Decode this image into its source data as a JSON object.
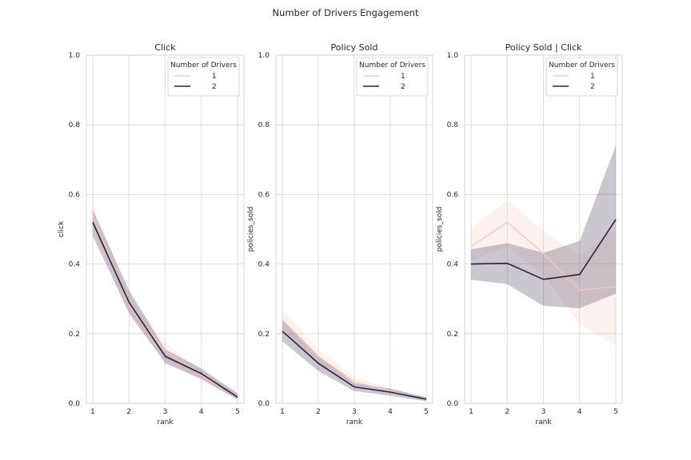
{
  "figure": {
    "title": "Number of Drivers Engagement"
  },
  "colors": {
    "series_1": "#f0c8c0",
    "series_2": "#2b2140",
    "grid": "#d6d6d6",
    "frame": "#cccccc"
  },
  "chart_data": [
    {
      "type": "line",
      "title": "Click",
      "xlabel": "rank",
      "ylabel": "click",
      "x": [
        1,
        2,
        3,
        4,
        5
      ],
      "xticks": [
        "1",
        "2",
        "3",
        "4",
        "5"
      ],
      "yticks": [
        "0.0",
        "0.2",
        "0.4",
        "0.6",
        "0.8",
        "1.0"
      ],
      "ylim": [
        0,
        1
      ],
      "grid": true,
      "legend": {
        "title": "Number of Drivers",
        "position": "top-right"
      },
      "series": [
        {
          "name": "1",
          "values": [
            0.54,
            0.28,
            0.15,
            0.08,
            0.02
          ],
          "lower": [
            0.51,
            0.25,
            0.125,
            0.065,
            0.012
          ],
          "upper": [
            0.575,
            0.31,
            0.175,
            0.095,
            0.03
          ]
        },
        {
          "name": "2",
          "values": [
            0.52,
            0.29,
            0.135,
            0.085,
            0.018
          ],
          "lower": [
            0.48,
            0.26,
            0.115,
            0.07,
            0.01
          ],
          "upper": [
            0.555,
            0.325,
            0.155,
            0.1,
            0.028
          ]
        }
      ]
    },
    {
      "type": "line",
      "title": "Policy Sold",
      "xlabel": "rank",
      "ylabel": "policies_sold",
      "x": [
        1,
        2,
        3,
        4,
        5
      ],
      "xticks": [
        "1",
        "2",
        "3",
        "4",
        "5"
      ],
      "yticks": [
        "0.0",
        "0.2",
        "0.4",
        "0.6",
        "0.8",
        "1.0"
      ],
      "ylim": [
        0,
        1
      ],
      "grid": true,
      "legend": {
        "title": "Number of Drivers",
        "position": "top-right"
      },
      "series": [
        {
          "name": "1",
          "values": [
            0.24,
            0.135,
            0.062,
            0.035,
            0.01
          ],
          "lower": [
            0.215,
            0.115,
            0.05,
            0.027,
            0.006
          ],
          "upper": [
            0.27,
            0.155,
            0.075,
            0.043,
            0.015
          ]
        },
        {
          "name": "2",
          "values": [
            0.207,
            0.115,
            0.047,
            0.032,
            0.012
          ],
          "lower": [
            0.178,
            0.093,
            0.035,
            0.022,
            0.006
          ],
          "upper": [
            0.237,
            0.137,
            0.058,
            0.042,
            0.018
          ]
        }
      ]
    },
    {
      "type": "line",
      "title": "Policy Sold | Click",
      "xlabel": "rank",
      "ylabel": "policies_sold",
      "x": [
        1,
        2,
        3,
        4,
        5
      ],
      "xticks": [
        "1",
        "2",
        "3",
        "4",
        "5"
      ],
      "yticks": [
        "0.0",
        "0.2",
        "0.4",
        "0.6",
        "0.8",
        "1.0"
      ],
      "ylim": [
        0,
        1
      ],
      "grid": true,
      "legend": {
        "title": "Number of Drivers",
        "position": "top-right"
      },
      "series": [
        {
          "name": "1",
          "values": [
            0.45,
            0.52,
            0.43,
            0.325,
            0.335
          ],
          "lower": [
            0.41,
            0.45,
            0.37,
            0.225,
            0.165
          ],
          "upper": [
            0.5,
            0.585,
            0.495,
            0.425,
            0.5
          ]
        },
        {
          "name": "2",
          "values": [
            0.4,
            0.402,
            0.356,
            0.37,
            0.528
          ],
          "lower": [
            0.355,
            0.342,
            0.28,
            0.273,
            0.315
          ],
          "upper": [
            0.442,
            0.46,
            0.432,
            0.466,
            0.74
          ]
        }
      ]
    }
  ]
}
